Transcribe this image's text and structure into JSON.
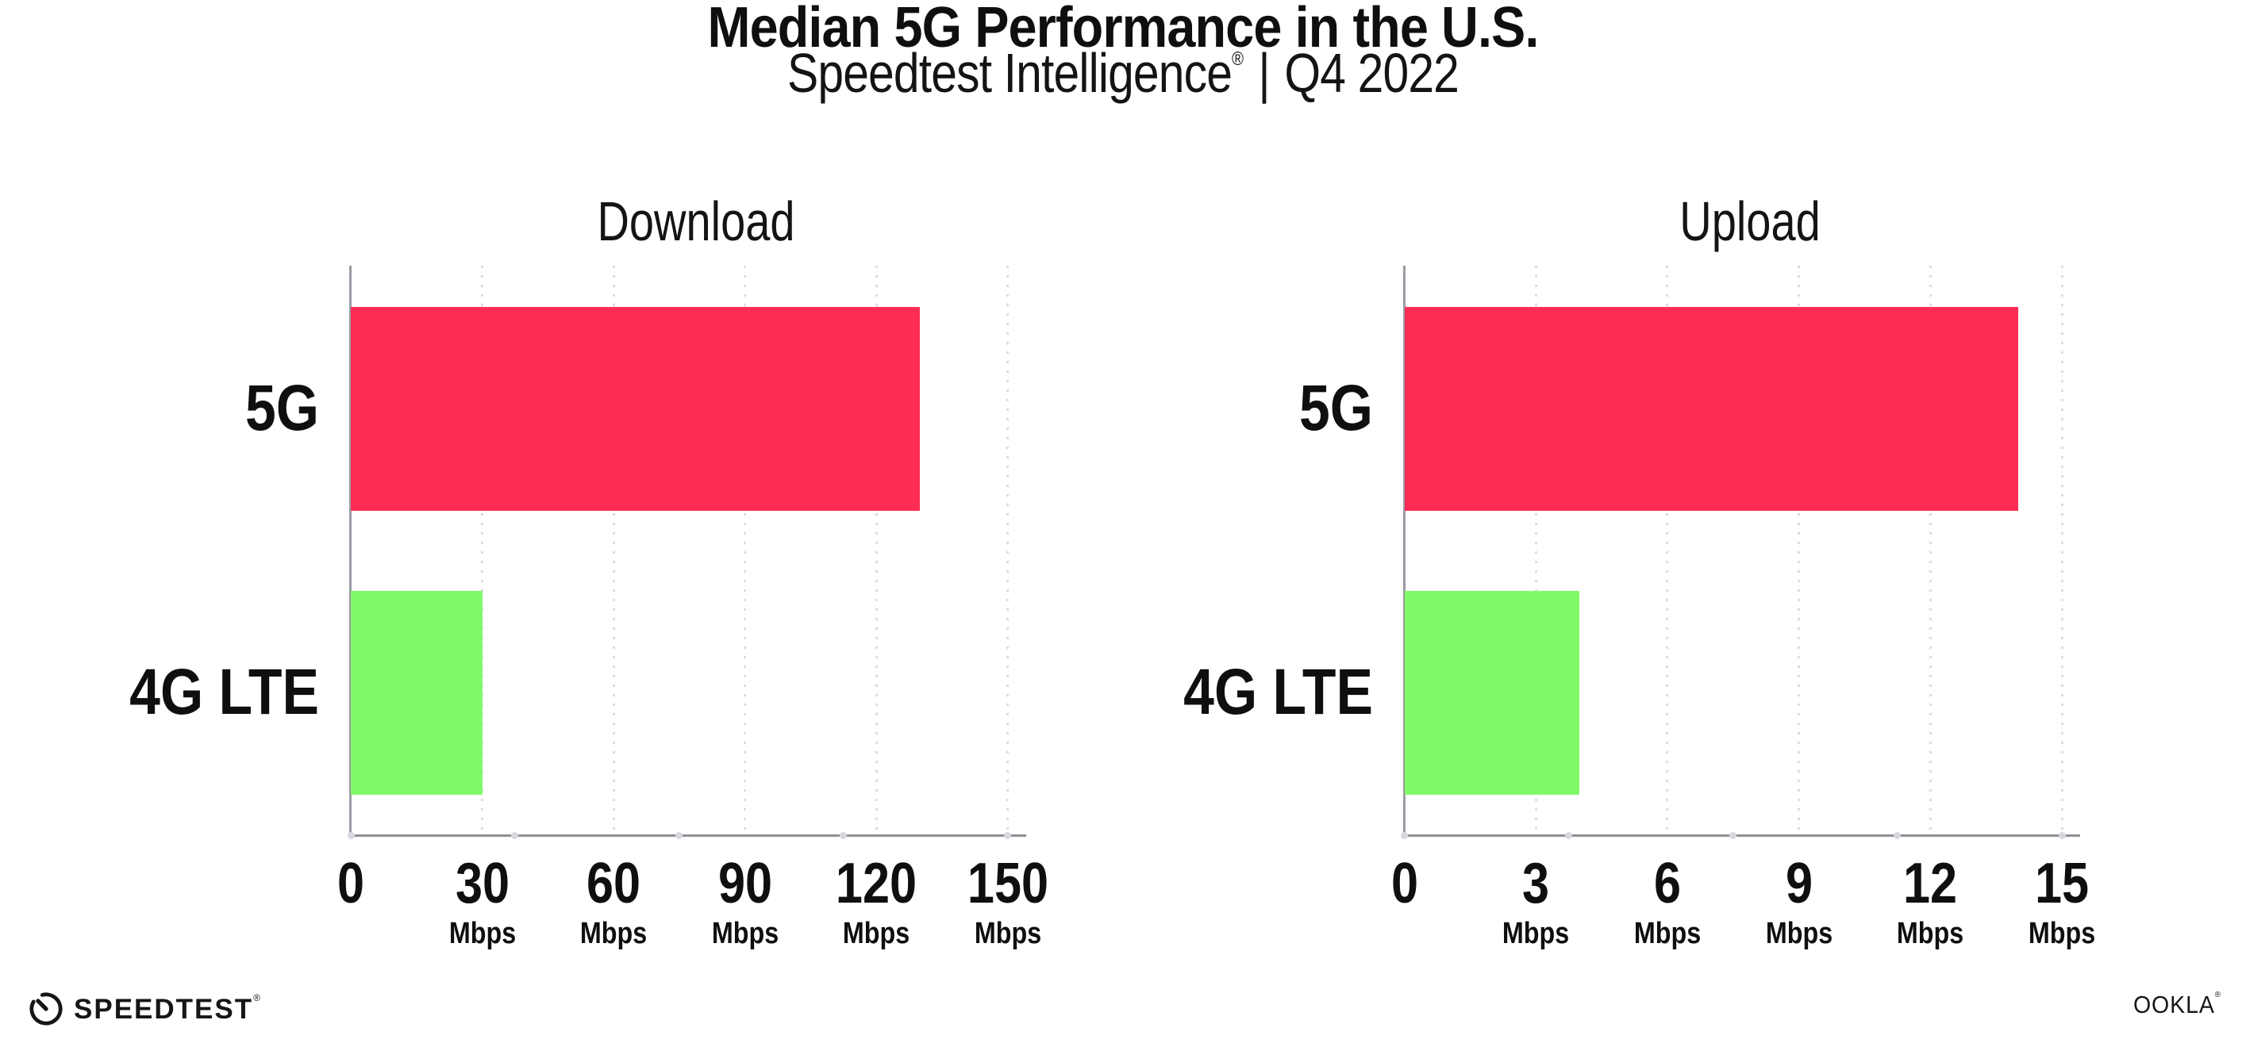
{
  "header": {
    "title": "Median 5G Performance in the U.S.",
    "subtitle": {
      "brand": "Speedtest Intelligence",
      "registered_mark": "®",
      "separator": "|",
      "period": "Q4 2022"
    }
  },
  "chart_data": [
    {
      "type": "bar",
      "orientation": "horizontal",
      "title": "Download",
      "categories": [
        "5G",
        "4G LTE"
      ],
      "values": [
        130,
        30
      ],
      "unit": "Mbps",
      "xlim": [
        0,
        150
      ],
      "xticks": [
        0,
        30,
        60,
        90,
        120,
        150
      ],
      "grid": "vertical-dotted",
      "legend": "none",
      "bar_colors": [
        "#FF2D55",
        "#80FA69"
      ]
    },
    {
      "type": "bar",
      "orientation": "horizontal",
      "title": "Upload",
      "categories": [
        "5G",
        "4G LTE"
      ],
      "values": [
        14,
        4
      ],
      "unit": "Mbps",
      "xlim": [
        0,
        15
      ],
      "xticks": [
        0,
        3,
        6,
        9,
        12,
        15
      ],
      "grid": "vertical-dotted",
      "legend": "none",
      "bar_colors": [
        "#FF2D55",
        "#80FA69"
      ]
    }
  ],
  "footer": {
    "speedtest_wordmark": "SPEEDTEST",
    "speedtest_mark": "®",
    "ookla_wordmark": "OOKLA",
    "ookla_mark": "®"
  },
  "colors": {
    "bar_5g": "#FF2D55",
    "bar_4g_lte": "#80FA69",
    "axis_line": "#8F8F96",
    "grid_dots": "#DCDCE4",
    "text": "#0F0F0F"
  }
}
